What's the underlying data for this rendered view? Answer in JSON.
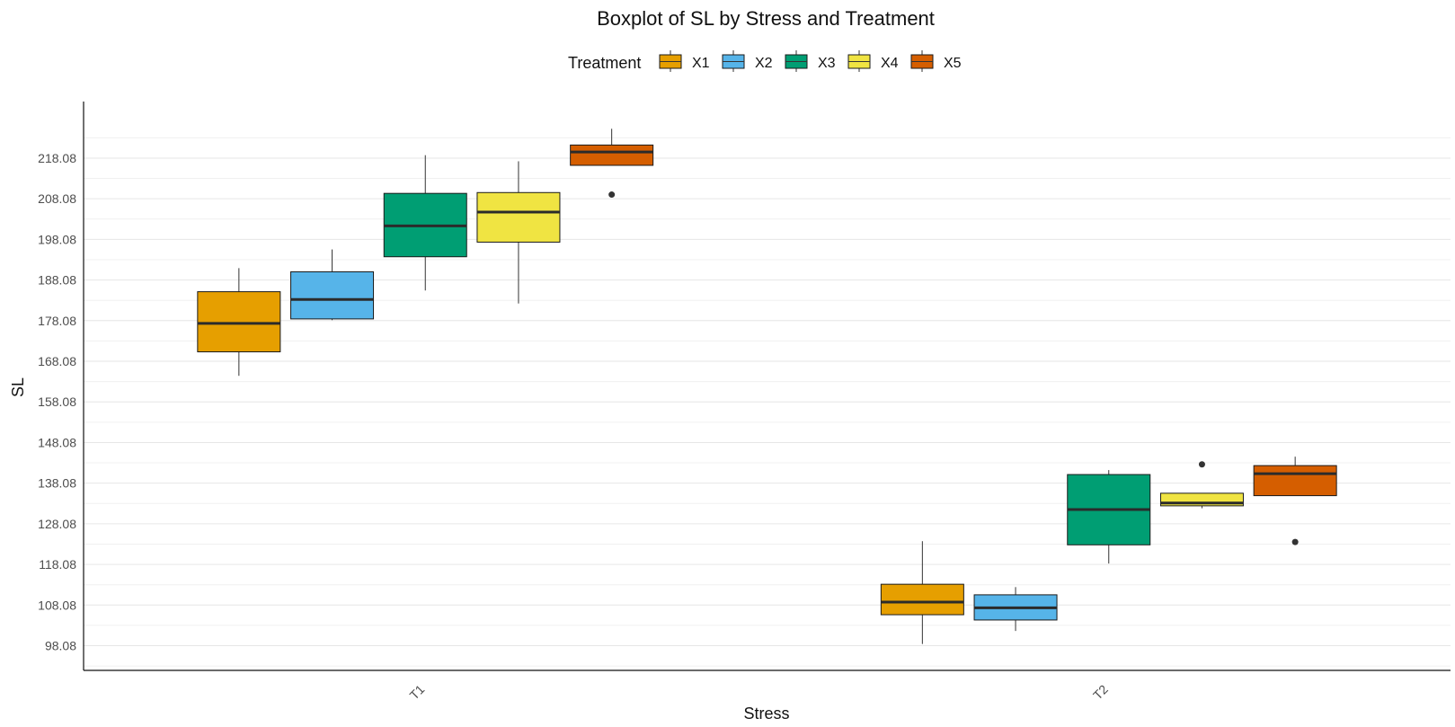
{
  "chart_data": {
    "type": "boxplot",
    "title": "Boxplot of SL by Stress and Treatment",
    "xlabel": "Stress",
    "ylabel": "SL",
    "legend": {
      "title": "Treatment",
      "placement": "top",
      "entries": [
        "X1",
        "X2",
        "X3",
        "X4",
        "X5"
      ]
    },
    "colors": {
      "X1": "#E69F00",
      "X2": "#56B4E9",
      "X3": "#009E73",
      "X4": "#F0E442",
      "X5": "#D55E00"
    },
    "categories": [
      "T1",
      "T2"
    ],
    "y_ticks": [
      "98.08",
      "108.08",
      "118.08",
      "128.08",
      "138.08",
      "148.08",
      "158.08",
      "168.08",
      "178.08",
      "188.08",
      "198.08",
      "208.08",
      "218.08"
    ],
    "ylim": [
      92,
      232
    ],
    "grid": true,
    "groups": [
      {
        "stress": "T1",
        "treatment": "X1",
        "whisker_low": 164.5,
        "q1": 170.4,
        "median": 177.4,
        "q3": 185.2,
        "whisker_high": 191.0,
        "outliers": []
      },
      {
        "stress": "T1",
        "treatment": "X2",
        "whisker_low": 178.2,
        "q1": 178.5,
        "median": 183.3,
        "q3": 190.1,
        "whisker_high": 195.6,
        "outliers": []
      },
      {
        "stress": "T1",
        "treatment": "X3",
        "whisker_low": 185.5,
        "q1": 193.8,
        "median": 201.4,
        "q3": 209.4,
        "whisker_high": 218.8,
        "outliers": []
      },
      {
        "stress": "T1",
        "treatment": "X4",
        "whisker_low": 182.3,
        "q1": 197.4,
        "median": 204.8,
        "q3": 209.6,
        "whisker_high": 217.3,
        "outliers": []
      },
      {
        "stress": "T1",
        "treatment": "X5",
        "whisker_low": 216.3,
        "q1": 216.3,
        "median": 219.6,
        "q3": 221.3,
        "whisker_high": 225.3,
        "outliers": [
          209.1
        ]
      },
      {
        "stress": "T2",
        "treatment": "X1",
        "whisker_low": 98.5,
        "q1": 105.7,
        "median": 108.8,
        "q3": 113.2,
        "whisker_high": 123.8,
        "outliers": []
      },
      {
        "stress": "T2",
        "treatment": "X2",
        "whisker_low": 101.7,
        "q1": 104.4,
        "median": 107.4,
        "q3": 110.6,
        "whisker_high": 112.5,
        "outliers": []
      },
      {
        "stress": "T2",
        "treatment": "X3",
        "whisker_low": 118.3,
        "q1": 122.9,
        "median": 131.6,
        "q3": 140.2,
        "whisker_high": 141.3,
        "outliers": []
      },
      {
        "stress": "T2",
        "treatment": "X4",
        "whisker_low": 131.9,
        "q1": 132.5,
        "median": 133.2,
        "q3": 135.6,
        "whisker_high": 135.6,
        "outliers": [
          142.7
        ]
      },
      {
        "stress": "T2",
        "treatment": "X5",
        "whisker_low": 135.0,
        "q1": 135.0,
        "median": 140.4,
        "q3": 142.4,
        "whisker_high": 144.6,
        "outliers": [
          123.6
        ]
      }
    ]
  }
}
